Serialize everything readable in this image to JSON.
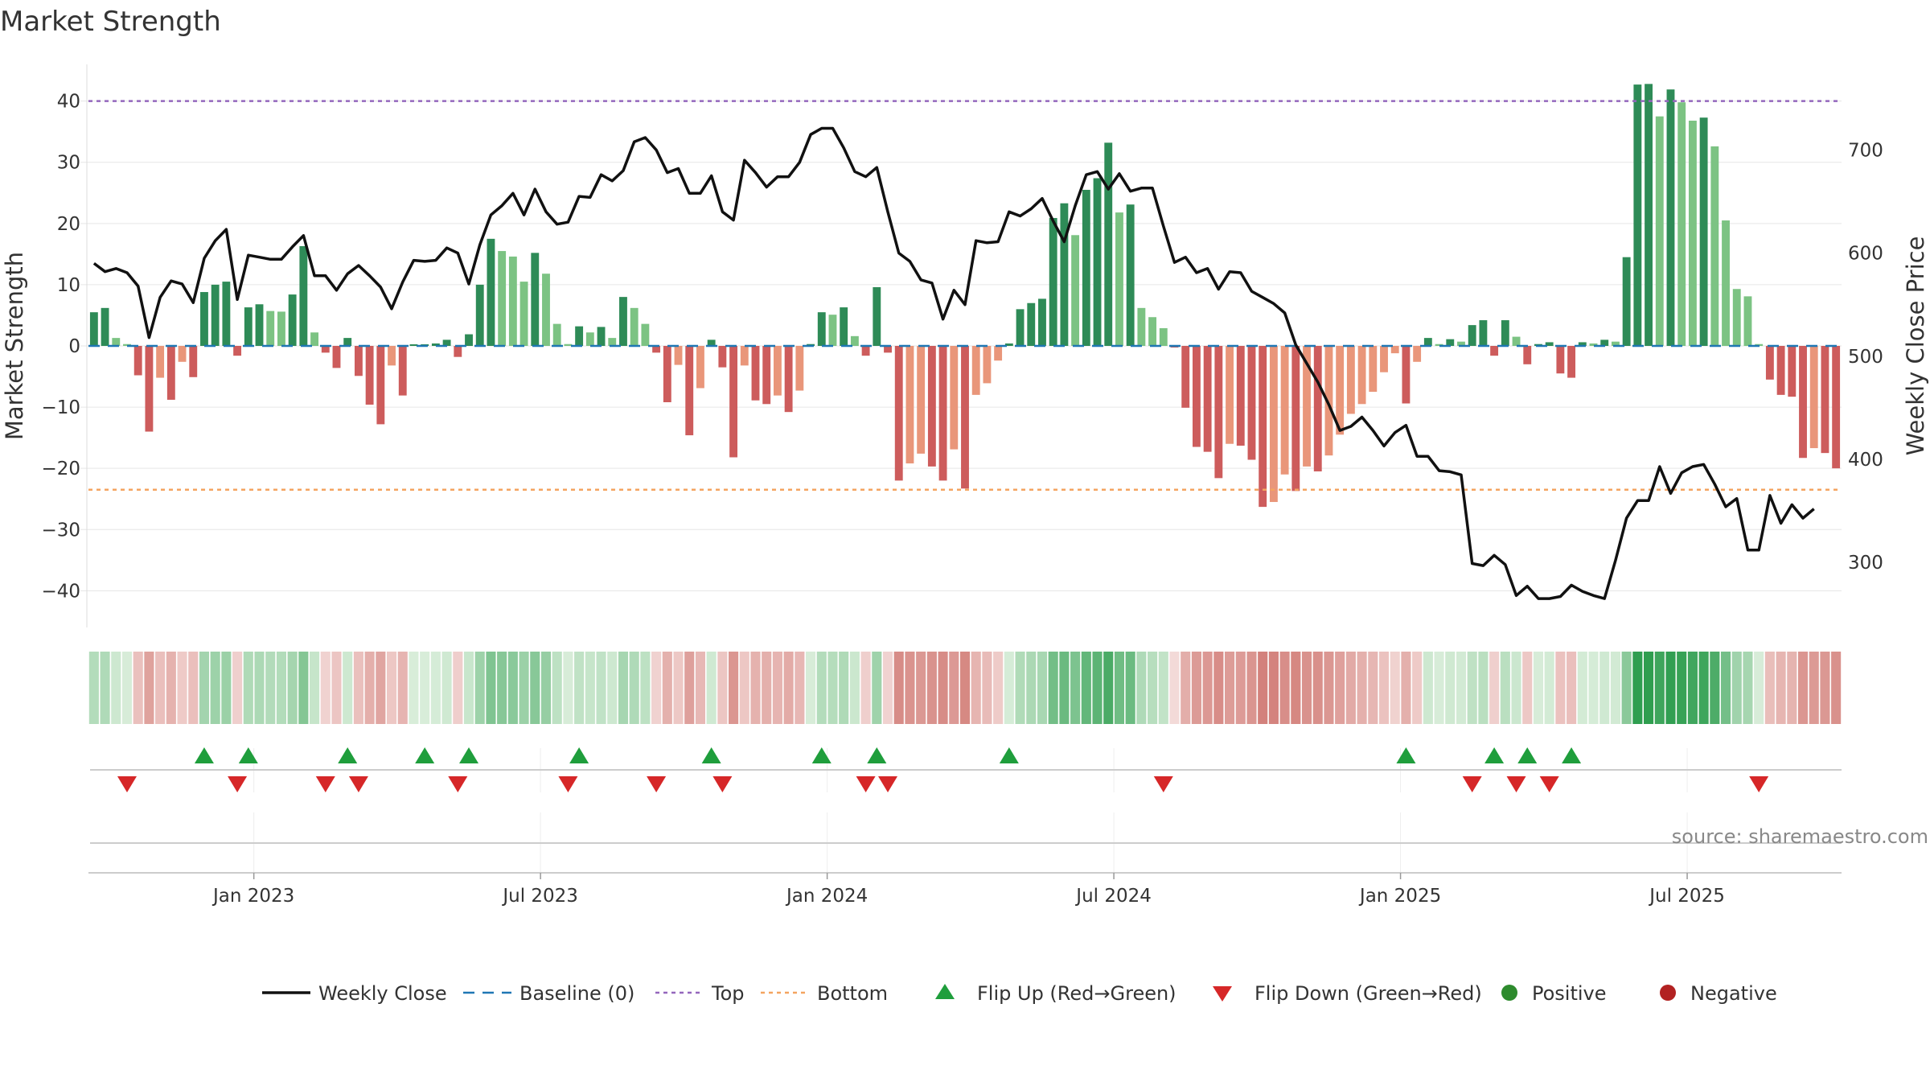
{
  "chart_data": {
    "type": "bar",
    "title": "Market Strength",
    "ylabel": "Market Strength",
    "y2label": "Weekly Close Price",
    "ylim": [
      -46,
      46
    ],
    "y2lim": [
      237,
      783
    ],
    "yticks": [
      40,
      30,
      20,
      10,
      0,
      -10,
      -20,
      -30,
      -40
    ],
    "y2ticks": [
      700,
      600,
      500,
      400,
      300
    ],
    "top_line": 40,
    "bottom_line": -23.5,
    "x_tick_labels": [
      "Jan 2023",
      "Jul 2023",
      "Jan 2024",
      "Jul 2024",
      "Jan 2025",
      "Jul 2025"
    ],
    "x_tick_weeks": [
      15,
      41,
      67,
      93,
      119,
      145
    ],
    "source": "source: sharemaestro.com",
    "series": [
      {
        "name": "Market Strength",
        "values": [
          5.5,
          6.2,
          1.3,
          0.3,
          -4.8,
          -14,
          -5.2,
          -8.8,
          -2.6,
          -5.1,
          8.8,
          10,
          10.5,
          -1.6,
          6.3,
          6.8,
          5.7,
          5.6,
          8.4,
          16.3,
          2.2,
          -1.1,
          -3.6,
          1.3,
          -4.9,
          -9.6,
          -12.8,
          -3.2,
          -8.1,
          0.2,
          0.2,
          0.4,
          1.0,
          -1.8,
          1.9,
          10,
          17.5,
          15.5,
          14.6,
          10.5,
          15.2,
          11.8,
          3.6,
          0.3,
          3.2,
          2.2,
          3.1,
          1.3,
          8,
          6.2,
          3.6,
          -1.1,
          -9.2,
          -3.1,
          -14.6,
          -6.9,
          1.0,
          -3.5,
          -18.2,
          -3.2,
          -8.9,
          -9.5,
          -8.1,
          -10.8,
          -7.3,
          0.3,
          5.5,
          5.1,
          6.3,
          1.6,
          -1.6,
          9.6,
          -1.1,
          -22,
          -19.2,
          -17.6,
          -19.7,
          -22,
          -16.9,
          -23.3,
          -8,
          -6.1,
          -2.4,
          0.4,
          6,
          7,
          7.7,
          20.9,
          23.3,
          18.1,
          25.5,
          27.4,
          33.2,
          21.8,
          23.1,
          6.2,
          4.7,
          2.9,
          -0.1,
          -10.1,
          -16.5,
          -17.3,
          -21.6,
          -16,
          -16.3,
          -18.6,
          -26.3,
          -25.5,
          -21,
          -23.7,
          -19.7,
          -20.5,
          -17.9,
          -14.5,
          -11.1,
          -9.5,
          -7.5,
          -4.3,
          -1.2,
          -9.4,
          -2.6,
          1.3,
          0.3,
          1.1,
          0.7,
          3.4,
          4.2,
          -1.6,
          4.2,
          1.5,
          -3,
          0.3,
          0.6,
          -4.5,
          -5.2,
          0.6,
          0.4,
          1.0,
          0.7,
          14.5,
          42.7,
          42.8,
          37.5,
          41.9,
          39.8,
          36.8,
          37.3,
          32.6,
          20.5,
          9.3,
          8.1,
          0.3,
          -5.5,
          -8,
          -8.3,
          -18.3,
          -16.7,
          -17.5,
          -20
        ]
      },
      {
        "name": "Weekly Close",
        "values": [
          590,
          582,
          585,
          581,
          568,
          518,
          557,
          573,
          570,
          552,
          595,
          612,
          623,
          555,
          598,
          596,
          594,
          594,
          606,
          617,
          578,
          578,
          564,
          580,
          588,
          578,
          567,
          546,
          572,
          593,
          592,
          593,
          605,
          600,
          570,
          608,
          637,
          646,
          658,
          637,
          662,
          640,
          628,
          630,
          655,
          654,
          676,
          670,
          680,
          708,
          712,
          700,
          678,
          682,
          658,
          658,
          675,
          640,
          632,
          690,
          678,
          664,
          674,
          674,
          688,
          715,
          721,
          721,
          702,
          679,
          674,
          683,
          640,
          600,
          592,
          574,
          571,
          536,
          564,
          550,
          612,
          610,
          611,
          640,
          636,
          643,
          653,
          631,
          611,
          646,
          676,
          679,
          662,
          677,
          660,
          663,
          663,
          626,
          591,
          596,
          581,
          585,
          565,
          582,
          581,
          563,
          557,
          551,
          542,
          511,
          493,
          475,
          453,
          428,
          432,
          441,
          428,
          413,
          426,
          433,
          403,
          403,
          389,
          388,
          385,
          299,
          297,
          307,
          298,
          268,
          277,
          265,
          265,
          267,
          278,
          272,
          268,
          265,
          302,
          343,
          360,
          360,
          393,
          367,
          387,
          393,
          395,
          376,
          354,
          362,
          312,
          312,
          365,
          338,
          356,
          343,
          352
        ]
      }
    ],
    "flip_up_weeks": [
      10,
      14,
      23,
      30,
      34,
      44,
      56,
      66,
      71,
      83,
      119,
      127,
      130,
      134
    ],
    "flip_down_weeks": [
      3,
      13,
      21,
      24,
      33,
      43,
      51,
      57,
      70,
      72,
      97,
      125,
      129,
      132,
      151
    ],
    "legend": {
      "position": "bottom",
      "items": [
        {
          "key": "close",
          "label": "Weekly Close",
          "color": "#111111"
        },
        {
          "key": "baseline",
          "label": "Baseline (0)",
          "color": "#1f77b4"
        },
        {
          "key": "top",
          "label": "Top",
          "color": "#9467bd"
        },
        {
          "key": "bottom",
          "label": "Bottom",
          "color": "#f4a460"
        },
        {
          "key": "flipup",
          "label": "Flip Up (Red→Green)",
          "color": "#1f9e3c"
        },
        {
          "key": "flipdown",
          "label": "Flip Down (Green→Red)",
          "color": "#d62728"
        },
        {
          "key": "positive",
          "label": "Positive",
          "color": "#2e8b2e"
        },
        {
          "key": "negative",
          "label": "Negative",
          "color": "#b22222"
        }
      ]
    }
  }
}
